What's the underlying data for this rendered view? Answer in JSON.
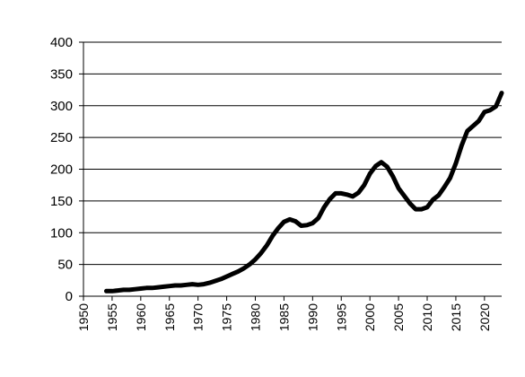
{
  "chart_data": {
    "type": "line",
    "title": "",
    "xlabel": "",
    "ylabel": "",
    "xlim": [
      1950,
      2023
    ],
    "ylim": [
      0,
      400
    ],
    "x_ticks": [
      1950,
      1955,
      1960,
      1965,
      1970,
      1975,
      1980,
      1985,
      1990,
      1995,
      2000,
      2005,
      2010,
      2015,
      2020
    ],
    "y_ticks": [
      0,
      50,
      100,
      150,
      200,
      250,
      300,
      350,
      400
    ],
    "grid": "horizontal",
    "legend": "none",
    "line_color": "#000000",
    "series": [
      {
        "x": [
          1954,
          1955,
          1956,
          1957,
          1958,
          1959,
          1960,
          1961,
          1962,
          1963,
          1964,
          1965,
          1966,
          1967,
          1968,
          1969,
          1970,
          1971,
          1972,
          1973,
          1974,
          1975,
          1976,
          1977,
          1978,
          1979,
          1980,
          1981,
          1982,
          1983,
          1984,
          1985,
          1986,
          1987,
          1988,
          1989,
          1990,
          1991,
          1992,
          1993,
          1994,
          1995,
          1996,
          1997,
          1998,
          1999,
          2000,
          2001,
          2002,
          2003,
          2004,
          2005,
          2006,
          2007,
          2008,
          2009,
          2010,
          2011,
          2012,
          2013,
          2014,
          2015,
          2016,
          2017,
          2018,
          2019,
          2020,
          2021,
          2022,
          2023
        ],
        "values": [
          8,
          8,
          9,
          10,
          10,
          11,
          12,
          13,
          13,
          14,
          15,
          16,
          17,
          17,
          18,
          19,
          18,
          19,
          21,
          24,
          27,
          31,
          35,
          39,
          44,
          50,
          58,
          68,
          80,
          95,
          107,
          117,
          121,
          118,
          111,
          112,
          115,
          123,
          140,
          153,
          162,
          162,
          160,
          157,
          163,
          175,
          193,
          205,
          211,
          204,
          189,
          170,
          158,
          146,
          137,
          137,
          140,
          152,
          159,
          172,
          186,
          209,
          237,
          260,
          268,
          276,
          290,
          293,
          299,
          320
        ]
      }
    ]
  }
}
